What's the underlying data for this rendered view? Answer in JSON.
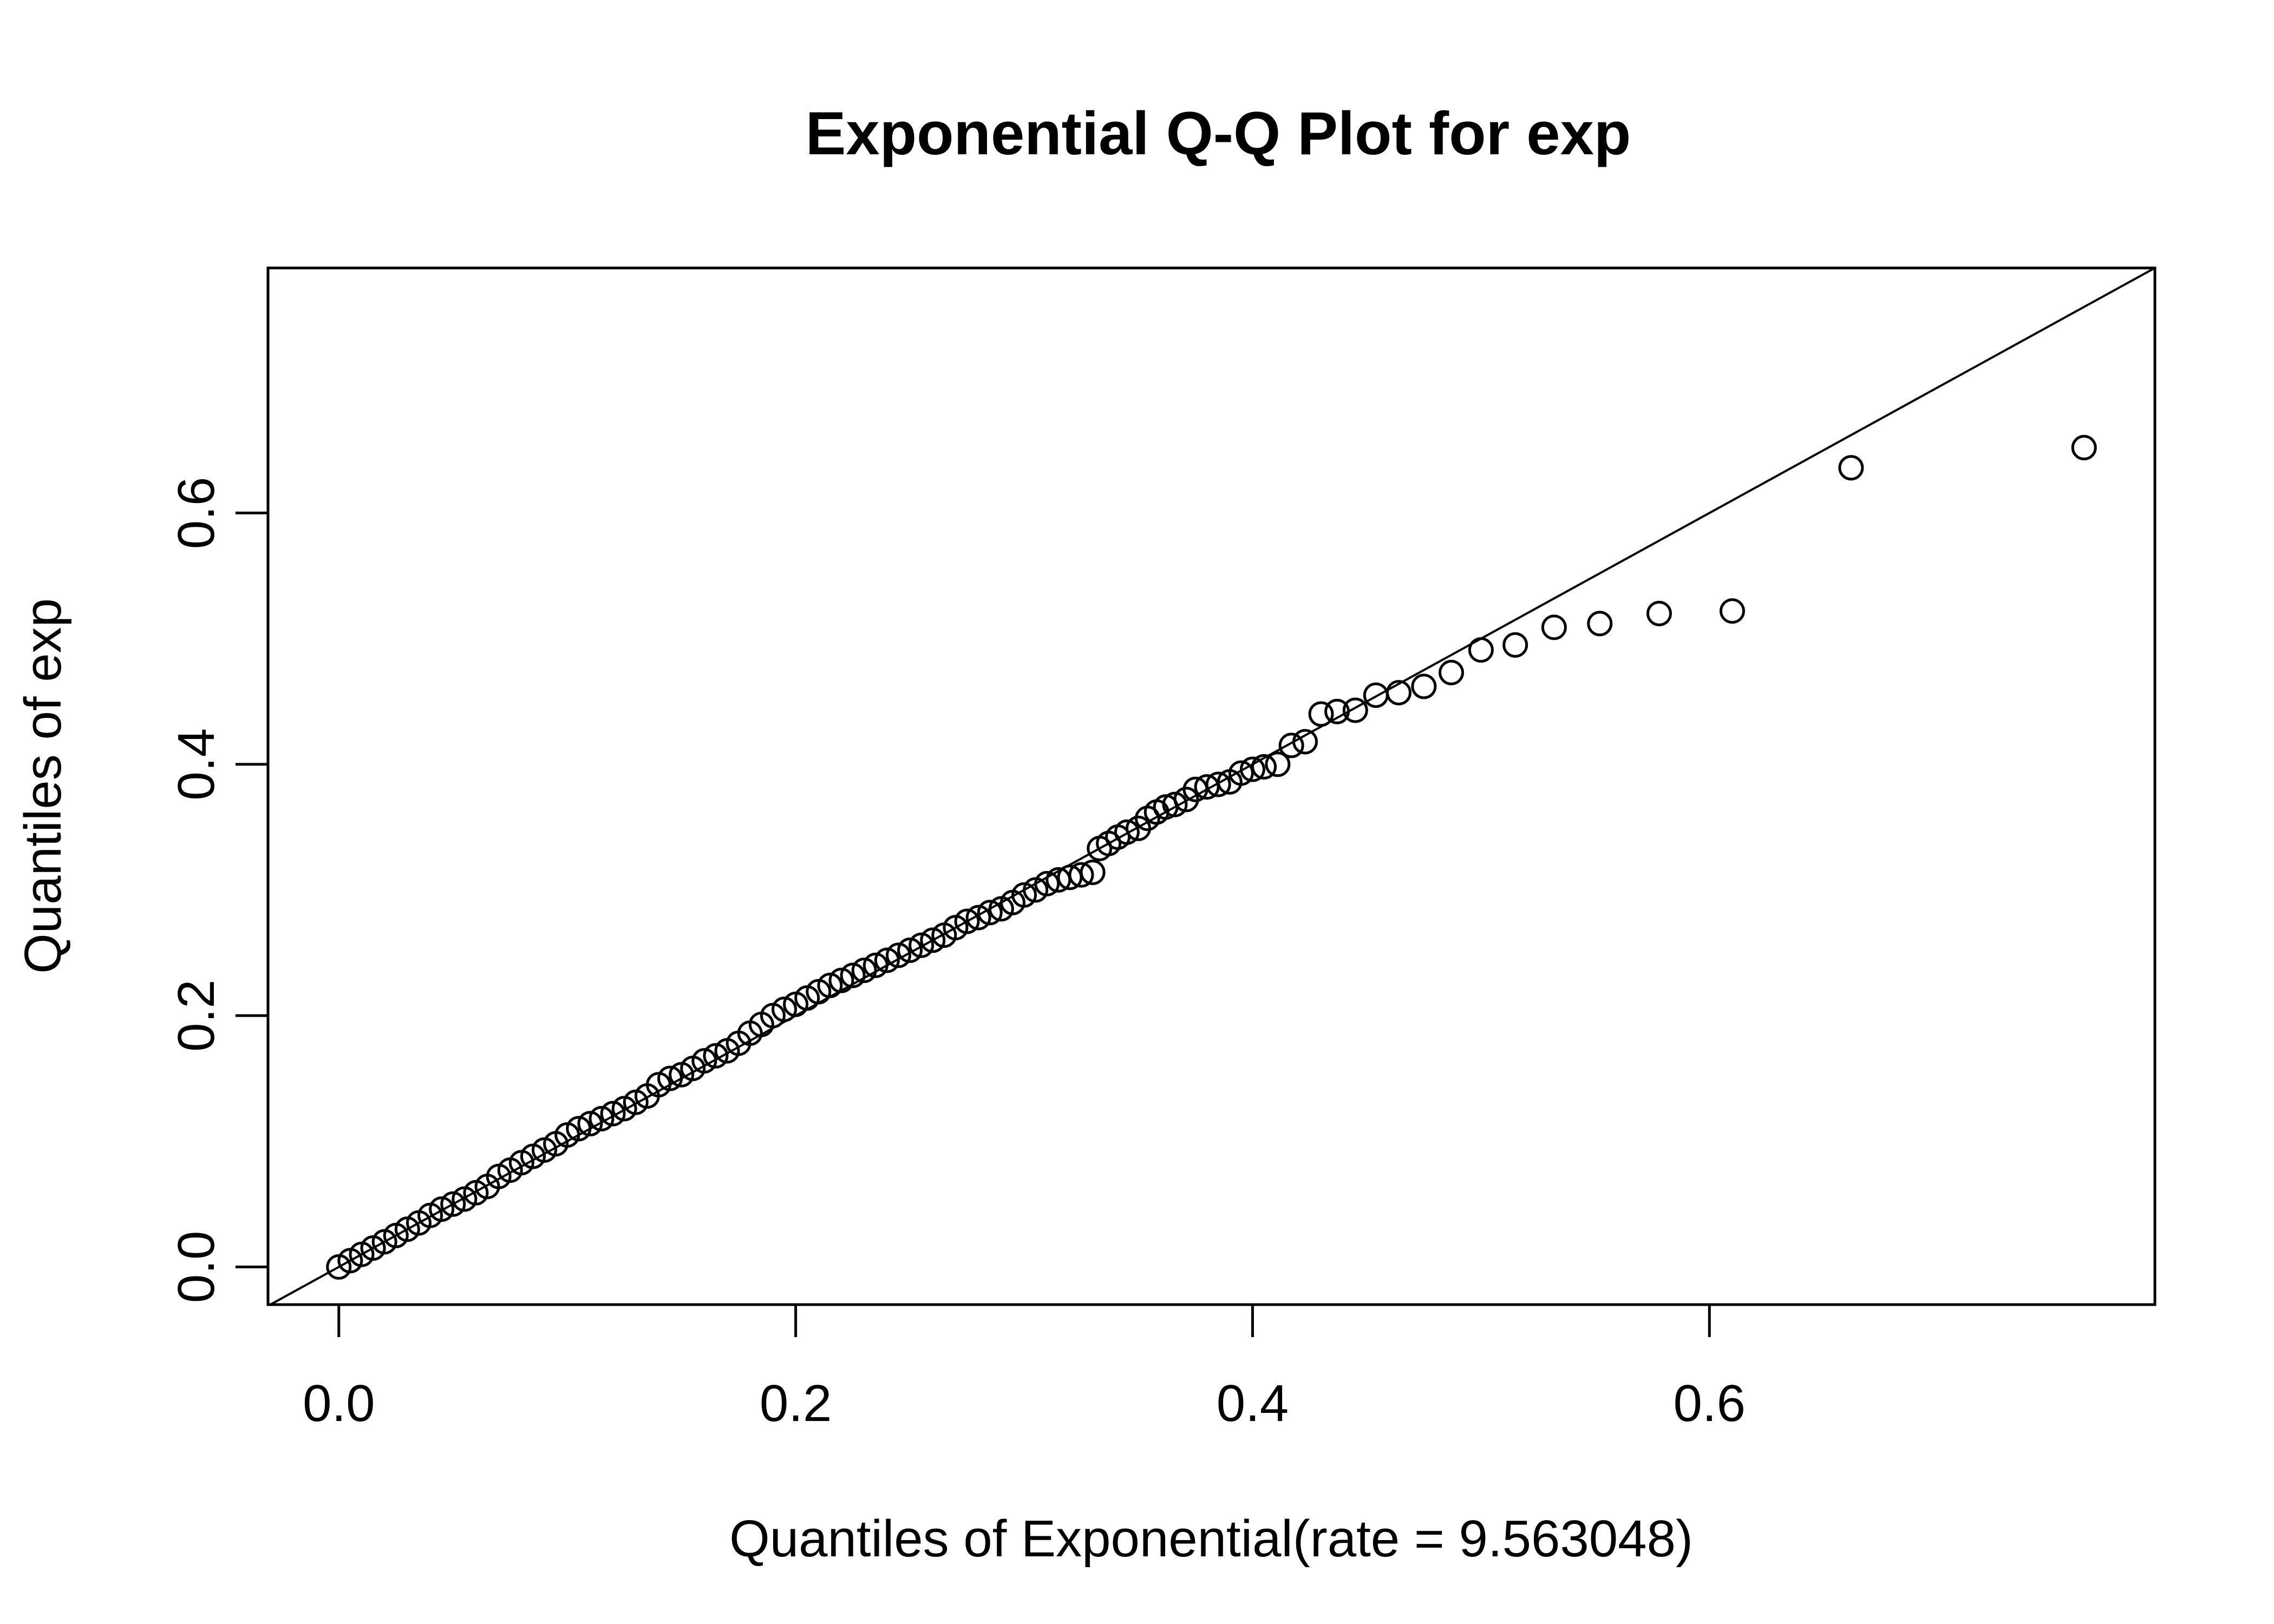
{
  "chart_data": {
    "type": "scatter",
    "title": "Exponential Q-Q Plot for exp",
    "xlabel": "Quantiles of Exponential(rate = 9.563048)",
    "ylabel": "Quantiles of exp",
    "xlim": [
      -0.031,
      0.795
    ],
    "ylim": [
      -0.03,
      0.795
    ],
    "xticks": [
      0,
      0.2,
      0.4,
      0.6
    ],
    "xtick_labels": [
      "0.0",
      "0.2",
      "0.4",
      "0.6"
    ],
    "yticks": [
      0,
      0.2,
      0.4,
      0.6
    ],
    "ytick_labels": [
      "0.0",
      "0.2",
      "0.4",
      "0.6"
    ],
    "grid": false,
    "legend": false,
    "reference_line": {
      "intercept": 0.0,
      "slope": 1.0
    },
    "marker": "open-circle",
    "colors": {
      "points": "#000000",
      "line": "#000000",
      "frame": "#000000"
    },
    "points": {
      "x": [
        0.0,
        0.005,
        0.01,
        0.015,
        0.02,
        0.025,
        0.03,
        0.035,
        0.04,
        0.045,
        0.05,
        0.055,
        0.06,
        0.065,
        0.07,
        0.075,
        0.08,
        0.085,
        0.09,
        0.095,
        0.1,
        0.105,
        0.11,
        0.115,
        0.12,
        0.125,
        0.13,
        0.135,
        0.14,
        0.145,
        0.15,
        0.155,
        0.16,
        0.165,
        0.17,
        0.175,
        0.18,
        0.185,
        0.19,
        0.195,
        0.2,
        0.205,
        0.21,
        0.215,
        0.22,
        0.225,
        0.23,
        0.235,
        0.24,
        0.245,
        0.25,
        0.255,
        0.26,
        0.265,
        0.27,
        0.275,
        0.28,
        0.285,
        0.29,
        0.295,
        0.3,
        0.305,
        0.31,
        0.315,
        0.32,
        0.325,
        0.33,
        0.333,
        0.337,
        0.341,
        0.345,
        0.35,
        0.354,
        0.358,
        0.362,
        0.366,
        0.371,
        0.375,
        0.38,
        0.385,
        0.39,
        0.395,
        0.4,
        0.405,
        0.411,
        0.417,
        0.423,
        0.43,
        0.437,
        0.445,
        0.454,
        0.464,
        0.475,
        0.487,
        0.5,
        0.515,
        0.532,
        0.552,
        0.578,
        0.61,
        0.662,
        0.764
      ],
      "y": [
        0.0,
        0.005,
        0.01,
        0.015,
        0.02,
        0.025,
        0.03,
        0.035,
        0.041,
        0.046,
        0.05,
        0.054,
        0.059,
        0.064,
        0.072,
        0.077,
        0.083,
        0.088,
        0.093,
        0.098,
        0.105,
        0.11,
        0.114,
        0.118,
        0.122,
        0.126,
        0.131,
        0.136,
        0.145,
        0.15,
        0.153,
        0.158,
        0.164,
        0.168,
        0.172,
        0.178,
        0.186,
        0.193,
        0.2,
        0.205,
        0.209,
        0.214,
        0.219,
        0.224,
        0.228,
        0.232,
        0.236,
        0.24,
        0.244,
        0.248,
        0.252,
        0.256,
        0.26,
        0.264,
        0.27,
        0.275,
        0.278,
        0.282,
        0.285,
        0.29,
        0.296,
        0.3,
        0.305,
        0.308,
        0.31,
        0.312,
        0.314,
        0.333,
        0.337,
        0.342,
        0.346,
        0.349,
        0.357,
        0.362,
        0.366,
        0.368,
        0.372,
        0.38,
        0.382,
        0.384,
        0.386,
        0.393,
        0.396,
        0.398,
        0.4,
        0.415,
        0.418,
        0.44,
        0.442,
        0.443,
        0.455,
        0.457,
        0.462,
        0.473,
        0.491,
        0.495,
        0.509,
        0.512,
        0.52,
        0.522,
        0.636,
        0.652
      ]
    }
  }
}
